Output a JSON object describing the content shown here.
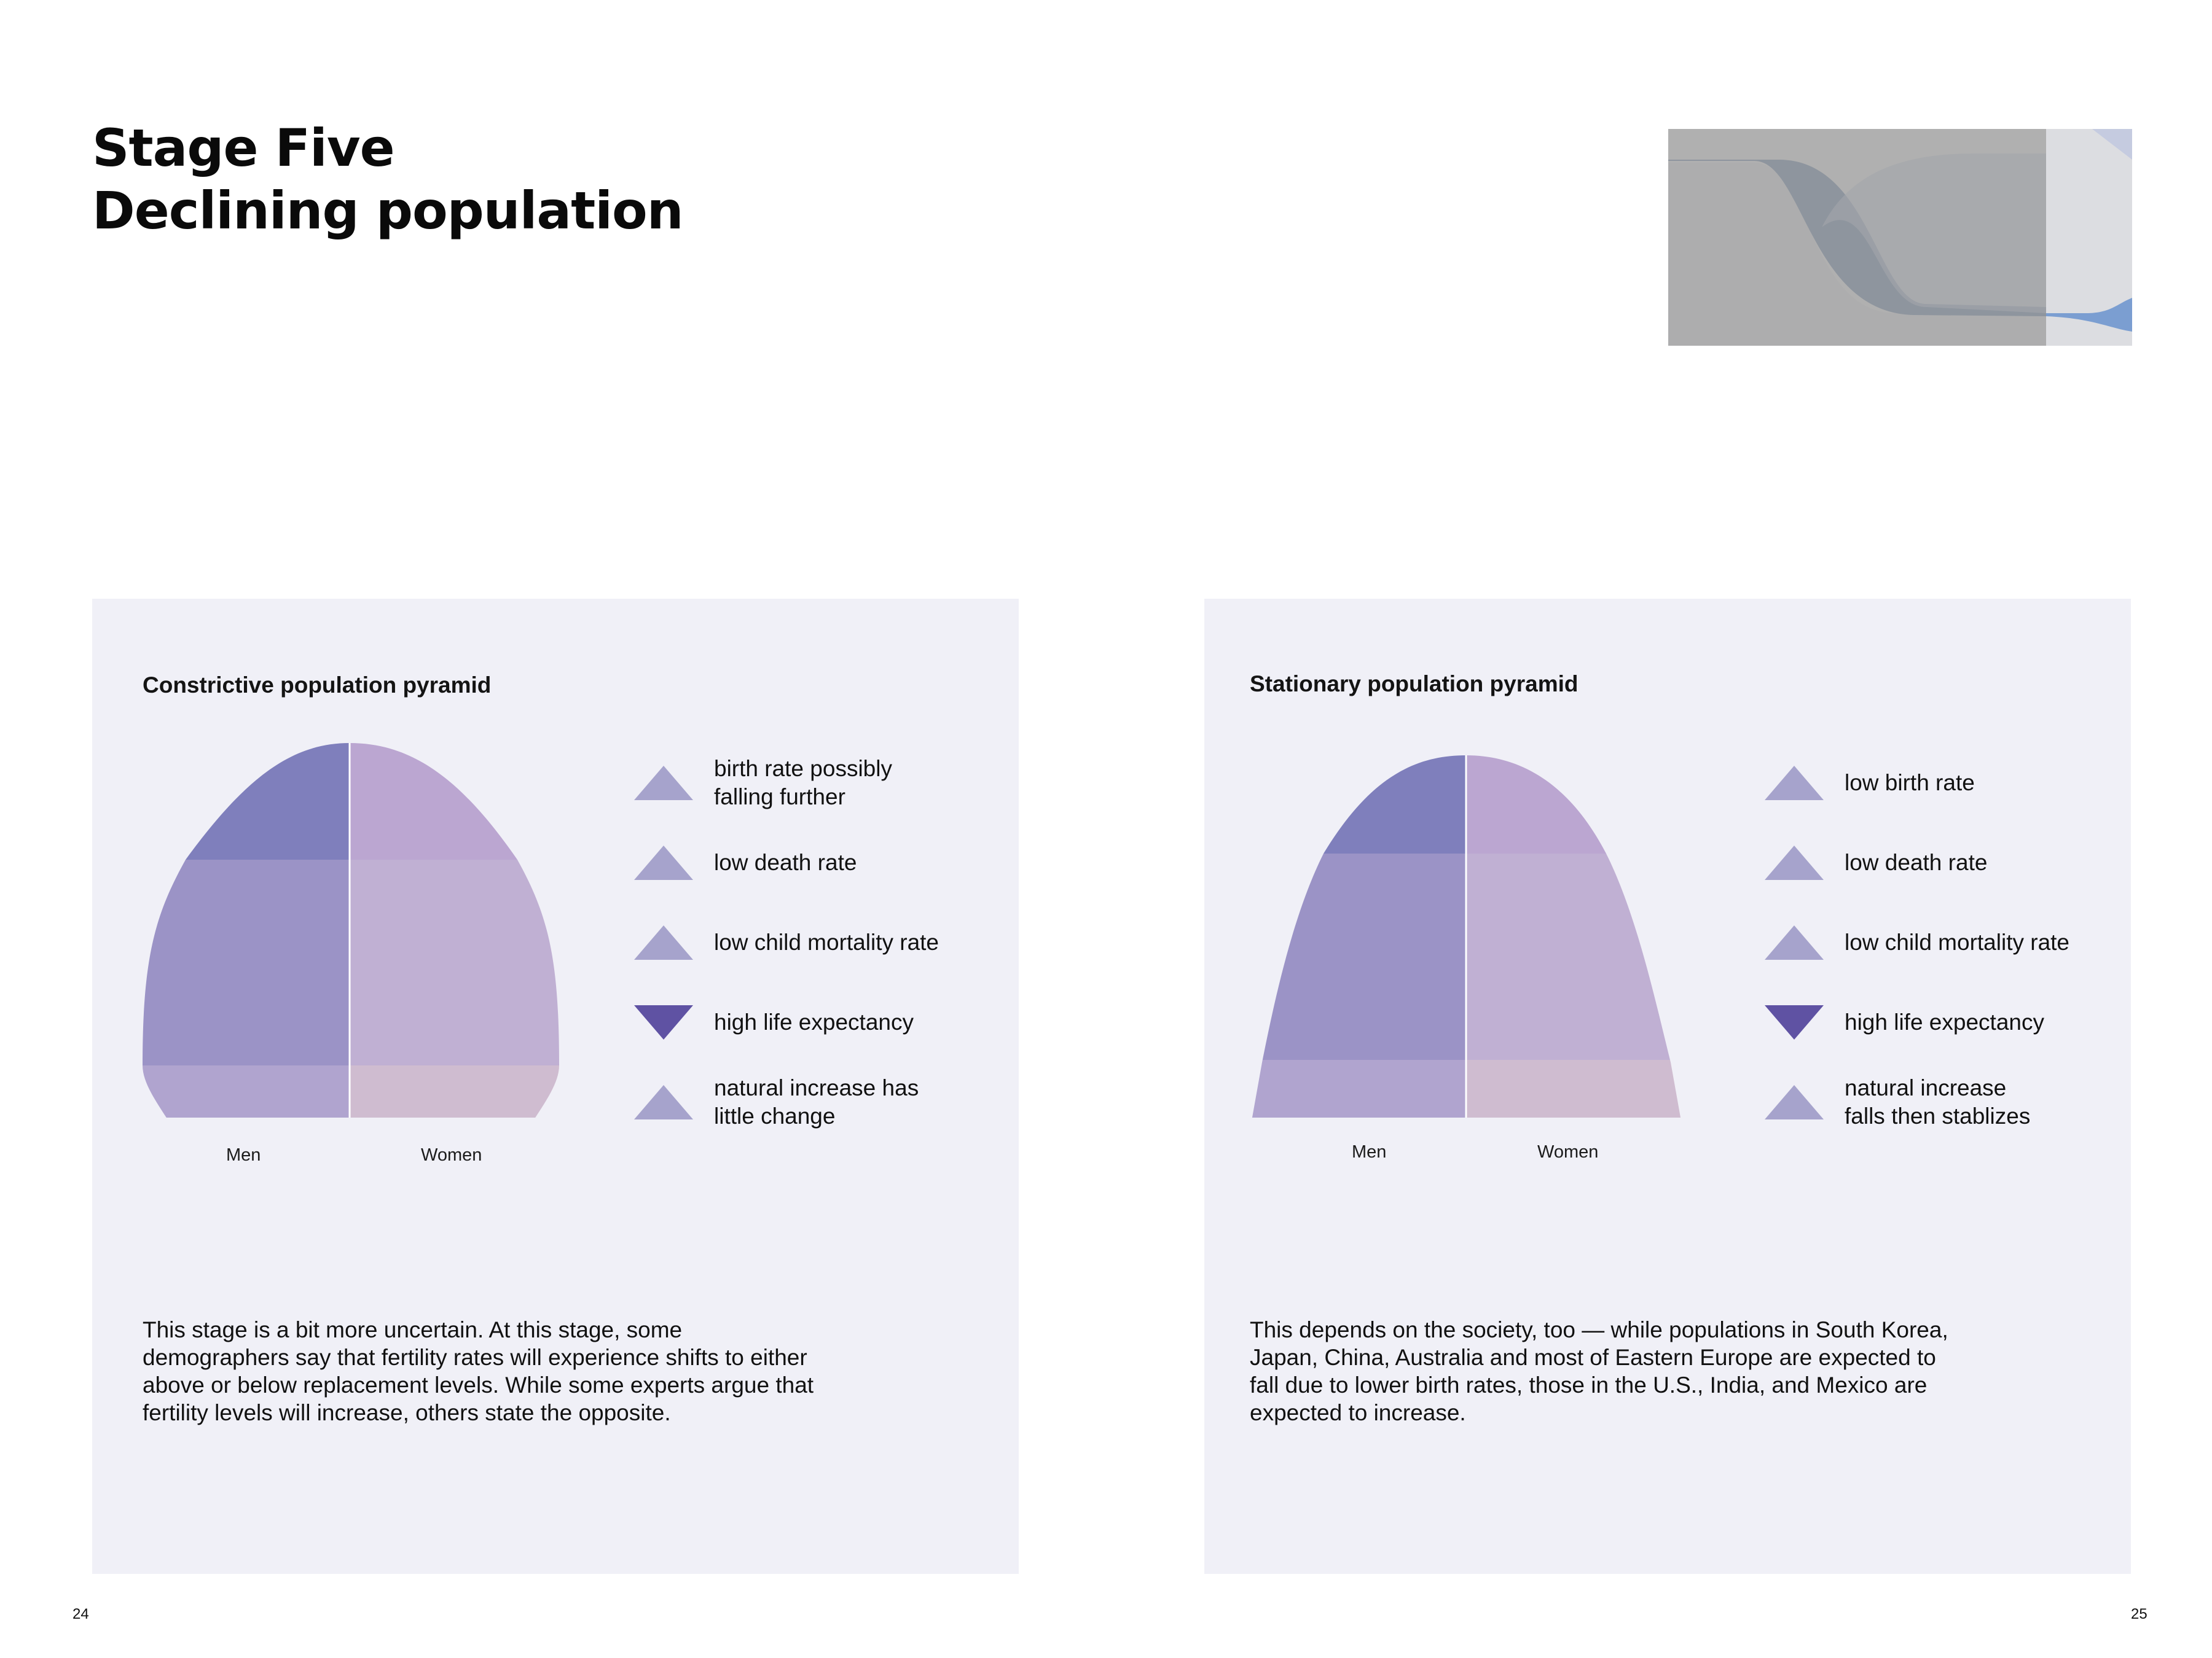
{
  "page": {
    "title_line1": "Stage Five",
    "title_line2": "Declining population",
    "page_left": "24",
    "page_right": "25"
  },
  "colors": {
    "panel_bg": "#f0f0f7",
    "men_top": "#7f7fbc",
    "women_top": "#bba6d1",
    "men_mid": "#9b93c6",
    "women_mid": "#c0b0d3",
    "men_bottom": "#b0a4cf",
    "women_bottom": "#cfbcd0",
    "triangle_up": "#a6a3cc",
    "triangle_down": "#5f52a3",
    "thumb_gray": "#b0b0b0"
  },
  "left": {
    "title": "Constrictive population pyramid",
    "men_label": "Men",
    "women_label": "Women",
    "legend": [
      {
        "text": "birth rate possibly\nfalling further",
        "direction": "up",
        "icon": "triangle-up-icon"
      },
      {
        "text": "low death rate",
        "direction": "up",
        "icon": "triangle-up-icon"
      },
      {
        "text": "low child mortality rate",
        "direction": "up",
        "icon": "triangle-up-icon"
      },
      {
        "text": "high life expectancy",
        "direction": "down",
        "icon": "triangle-down-icon"
      },
      {
        "text": "natural increase has\nlittle change",
        "direction": "up",
        "icon": "triangle-up-icon"
      }
    ],
    "body": "This stage is a bit more uncertain. At this stage, some demographers say that fertility rates will experience shifts to either above or below replacement levels. While some experts argue that fertility levels will increase, others state the opposite."
  },
  "right": {
    "title": "Stationary population pyramid",
    "men_label": "Men",
    "women_label": "Women",
    "legend": [
      {
        "text": "low birth rate",
        "direction": "up",
        "icon": "triangle-up-icon"
      },
      {
        "text": "low death rate",
        "direction": "up",
        "icon": "triangle-up-icon"
      },
      {
        "text": "low child mortality rate",
        "direction": "up",
        "icon": "triangle-up-icon"
      },
      {
        "text": "high life expectancy",
        "direction": "down",
        "icon": "triangle-down-icon"
      },
      {
        "text": "natural increase\nfalls then stablizes",
        "direction": "up",
        "icon": "triangle-up-icon"
      }
    ],
    "body": "This depends on the society, too — while populations in South Korea, Japan, China, Australia and most of Eastern Europe are expected to fall due to lower birth rates, those in the U.S., India, and Mexico are expected to increase."
  }
}
